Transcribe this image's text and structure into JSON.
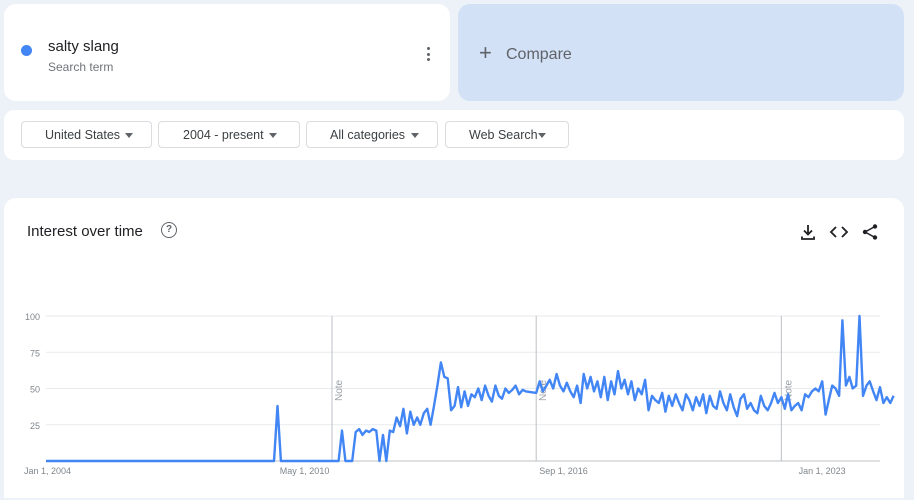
{
  "term": {
    "name": "salty slang",
    "subtitle": "Search term",
    "color": "#4285f4"
  },
  "compare": {
    "label": "Compare",
    "icon": "plus-icon"
  },
  "filters": [
    {
      "label": "United States"
    },
    {
      "label": "2004 - present"
    },
    {
      "label": "All categories"
    },
    {
      "label": "Web Search"
    }
  ],
  "chart_card": {
    "title": "Interest over time",
    "help_icon": "help-circle-icon",
    "tools": [
      "download-icon",
      "embed-code-icon",
      "share-icon"
    ]
  },
  "chart_data": {
    "type": "line",
    "series": [
      {
        "color": "#4285f4"
      }
    ],
    "xlim": [
      "2004-01-01",
      "2024-06-01"
    ],
    "ylim": [
      0,
      100
    ],
    "yticks": [
      "100",
      "75",
      "50",
      "25"
    ],
    "xticks": [
      "Jan 1, 2004",
      "May 1, 2010",
      "Sep 1, 2016",
      "Jan 1, 2023"
    ],
    "notes": [
      {
        "label": "Note",
        "date": "2011-01-01"
      },
      {
        "label": "Note",
        "date": "2016-01-01"
      },
      {
        "label": "Note",
        "date": "2022-01-01"
      }
    ],
    "points": [
      [
        "2004-01-01",
        0
      ],
      [
        "2009-08-01",
        0
      ],
      [
        "2009-09-01",
        38
      ],
      [
        "2009-10-01",
        0
      ],
      [
        "2011-03-01",
        0
      ],
      [
        "2011-04-01",
        21
      ],
      [
        "2011-05-01",
        0
      ],
      [
        "2011-07-01",
        0
      ],
      [
        "2011-08-01",
        20
      ],
      [
        "2011-09-01",
        22
      ],
      [
        "2011-10-01",
        18
      ],
      [
        "2011-11-01",
        21
      ],
      [
        "2011-12-01",
        20
      ],
      [
        "2012-01-01",
        22
      ],
      [
        "2012-02-01",
        21
      ],
      [
        "2012-03-01",
        0
      ],
      [
        "2012-04-01",
        18
      ],
      [
        "2012-05-01",
        0
      ],
      [
        "2012-06-01",
        21
      ],
      [
        "2012-07-01",
        20
      ],
      [
        "2012-08-01",
        30
      ],
      [
        "2012-09-01",
        24
      ],
      [
        "2012-10-01",
        36
      ],
      [
        "2012-11-01",
        19
      ],
      [
        "2012-12-01",
        34
      ],
      [
        "2013-01-01",
        25
      ],
      [
        "2013-02-01",
        30
      ],
      [
        "2013-03-01",
        25
      ],
      [
        "2013-04-01",
        33
      ],
      [
        "2013-05-01",
        36
      ],
      [
        "2013-06-01",
        25
      ],
      [
        "2013-07-01",
        38
      ],
      [
        "2013-08-01",
        52
      ],
      [
        "2013-09-01",
        68
      ],
      [
        "2013-10-01",
        58
      ],
      [
        "2013-11-01",
        57
      ],
      [
        "2013-12-01",
        35
      ],
      [
        "2014-01-01",
        38
      ],
      [
        "2014-02-01",
        51
      ],
      [
        "2014-03-01",
        37
      ],
      [
        "2014-04-01",
        48
      ],
      [
        "2014-05-01",
        38
      ],
      [
        "2014-06-01",
        46
      ],
      [
        "2014-07-01",
        44
      ],
      [
        "2014-08-01",
        50
      ],
      [
        "2014-09-01",
        42
      ],
      [
        "2014-10-01",
        52
      ],
      [
        "2014-11-01",
        45
      ],
      [
        "2014-12-01",
        41
      ],
      [
        "2015-01-01",
        52
      ],
      [
        "2015-02-01",
        45
      ],
      [
        "2015-03-01",
        43
      ],
      [
        "2015-04-01",
        50
      ],
      [
        "2015-05-01",
        47
      ],
      [
        "2015-06-01",
        49
      ],
      [
        "2015-07-01",
        52
      ],
      [
        "2015-08-01",
        46
      ],
      [
        "2015-09-01",
        49
      ],
      [
        "2015-10-01",
        48
      ],
      [
        "2016-01-01",
        47
      ],
      [
        "2016-02-01",
        55
      ],
      [
        "2016-03-01",
        48
      ],
      [
        "2016-04-01",
        52
      ],
      [
        "2016-05-01",
        56
      ],
      [
        "2016-06-01",
        50
      ],
      [
        "2016-07-01",
        60
      ],
      [
        "2016-08-01",
        52
      ],
      [
        "2016-09-01",
        48
      ],
      [
        "2016-10-01",
        54
      ],
      [
        "2016-11-01",
        48
      ],
      [
        "2016-12-01",
        44
      ],
      [
        "2017-01-01",
        52
      ],
      [
        "2017-02-01",
        40
      ],
      [
        "2017-03-01",
        60
      ],
      [
        "2017-04-01",
        50
      ],
      [
        "2017-05-01",
        58
      ],
      [
        "2017-06-01",
        48
      ],
      [
        "2017-07-01",
        55
      ],
      [
        "2017-08-01",
        44
      ],
      [
        "2017-09-01",
        58
      ],
      [
        "2017-10-01",
        42
      ],
      [
        "2017-11-01",
        55
      ],
      [
        "2017-12-01",
        46
      ],
      [
        "2018-01-01",
        62
      ],
      [
        "2018-02-01",
        50
      ],
      [
        "2018-03-01",
        56
      ],
      [
        "2018-04-01",
        46
      ],
      [
        "2018-05-01",
        55
      ],
      [
        "2018-06-01",
        42
      ],
      [
        "2018-07-01",
        50
      ],
      [
        "2018-08-01",
        46
      ],
      [
        "2018-09-01",
        56
      ],
      [
        "2018-10-01",
        35
      ],
      [
        "2018-11-01",
        45
      ],
      [
        "2018-12-01",
        42
      ],
      [
        "2019-01-01",
        40
      ],
      [
        "2019-02-01",
        47
      ],
      [
        "2019-03-01",
        34
      ],
      [
        "2019-04-01",
        45
      ],
      [
        "2019-05-01",
        38
      ],
      [
        "2019-06-01",
        46
      ],
      [
        "2019-07-01",
        40
      ],
      [
        "2019-08-01",
        35
      ],
      [
        "2019-09-01",
        46
      ],
      [
        "2019-10-01",
        42
      ],
      [
        "2019-11-01",
        35
      ],
      [
        "2019-12-01",
        44
      ],
      [
        "2020-01-01",
        38
      ],
      [
        "2020-02-01",
        46
      ],
      [
        "2020-03-01",
        33
      ],
      [
        "2020-04-01",
        45
      ],
      [
        "2020-05-01",
        38
      ],
      [
        "2020-06-01",
        36
      ],
      [
        "2020-07-01",
        48
      ],
      [
        "2020-08-01",
        40
      ],
      [
        "2020-09-01",
        35
      ],
      [
        "2020-10-01",
        46
      ],
      [
        "2020-11-01",
        37
      ],
      [
        "2020-12-01",
        31
      ],
      [
        "2021-01-01",
        43
      ],
      [
        "2021-02-01",
        46
      ],
      [
        "2021-03-01",
        36
      ],
      [
        "2021-04-01",
        40
      ],
      [
        "2021-05-01",
        35
      ],
      [
        "2021-06-01",
        33
      ],
      [
        "2021-07-01",
        45
      ],
      [
        "2021-08-01",
        38
      ],
      [
        "2021-09-01",
        35
      ],
      [
        "2021-10-01",
        40
      ],
      [
        "2021-11-01",
        47
      ],
      [
        "2021-12-01",
        40
      ],
      [
        "2022-01-01",
        44
      ],
      [
        "2022-02-01",
        36
      ],
      [
        "2022-03-01",
        46
      ],
      [
        "2022-04-01",
        35
      ],
      [
        "2022-05-01",
        38
      ],
      [
        "2022-06-01",
        40
      ],
      [
        "2022-07-01",
        35
      ],
      [
        "2022-08-01",
        46
      ],
      [
        "2022-09-01",
        44
      ],
      [
        "2022-10-01",
        48
      ],
      [
        "2022-11-01",
        50
      ],
      [
        "2022-12-01",
        48
      ],
      [
        "2023-01-01",
        55
      ],
      [
        "2023-02-01",
        32
      ],
      [
        "2023-03-01",
        42
      ],
      [
        "2023-04-01",
        52
      ],
      [
        "2023-05-01",
        50
      ],
      [
        "2023-06-01",
        45
      ],
      [
        "2023-07-01",
        97
      ],
      [
        "2023-08-01",
        52
      ],
      [
        "2023-09-01",
        58
      ],
      [
        "2023-10-01",
        50
      ],
      [
        "2023-11-01",
        52
      ],
      [
        "2023-12-01",
        100
      ],
      [
        "2024-01-01",
        45
      ],
      [
        "2024-02-01",
        52
      ],
      [
        "2024-03-01",
        55
      ],
      [
        "2024-04-01",
        48
      ],
      [
        "2024-05-01",
        42
      ],
      [
        "2024-06-01",
        51
      ],
      [
        "2024-07-01",
        40
      ],
      [
        "2024-08-01",
        44
      ],
      [
        "2024-09-01",
        40
      ],
      [
        "2024-10-01",
        45
      ]
    ]
  }
}
